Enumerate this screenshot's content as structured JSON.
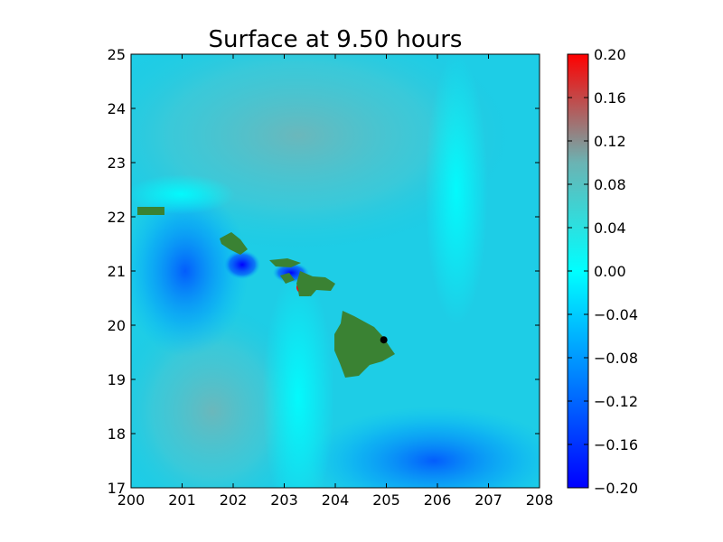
{
  "chart_data": {
    "type": "heatmap",
    "title": "Surface at 9.50 hours",
    "xlabel": "",
    "ylabel": "",
    "xlim": [
      200,
      208
    ],
    "ylim": [
      17,
      25
    ],
    "x_ticks": [
      200,
      201,
      202,
      203,
      204,
      205,
      206,
      207,
      208
    ],
    "y_ticks": [
      17,
      18,
      19,
      20,
      21,
      22,
      23,
      24,
      25
    ],
    "colorbar": {
      "range": [
        -0.2,
        0.2
      ],
      "ticks": [
        "0.20",
        "0.16",
        "0.12",
        "0.08",
        "0.04",
        "0.00",
        "−0.04",
        "−0.08",
        "−0.12",
        "−0.16",
        "−0.20"
      ],
      "colors": [
        "#0000ff",
        "#00ffff",
        "#ff0000"
      ]
    },
    "grid": false,
    "land_color": "#3a8233",
    "marker": {
      "x": 204.95,
      "y": 19.73,
      "color": "#000000"
    }
  }
}
